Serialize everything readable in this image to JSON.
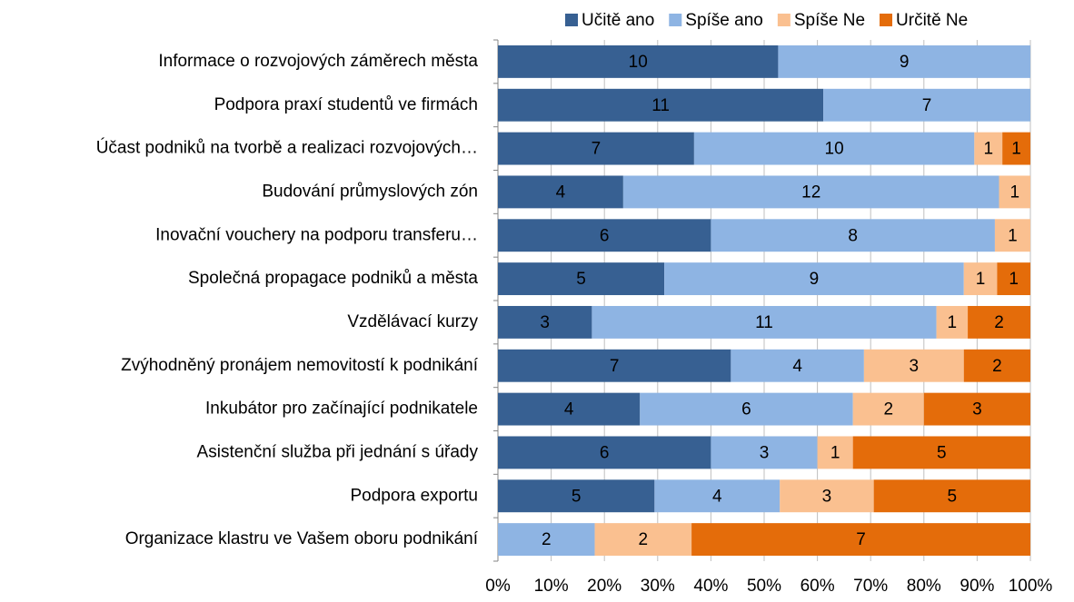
{
  "chart_data": {
    "type": "bar",
    "orientation": "horizontal",
    "stacking": "percent",
    "categories": [
      "Informace o rozvojových záměrech města",
      "Podpora praxí studentů ve firmách",
      "Účast podniků na tvorbě a realizaci rozvojových…",
      "Budování průmyslových zón",
      "Inovační vouchery na podporu transferu…",
      "Společná propagace podniků a města",
      "Vzdělávací kurzy",
      "Zvýhodněný pronájem nemovitostí k podnikání",
      "Inkubátor pro začínající podnikatele",
      "Asistenční služba při jednání s úřady",
      "Podpora exportu",
      "Organizace klastru ve Vašem oboru podnikání"
    ],
    "series": [
      {
        "name": "Učitě ano",
        "color": "#376092",
        "values": [
          10,
          11,
          7,
          4,
          6,
          5,
          3,
          7,
          4,
          6,
          5,
          0
        ]
      },
      {
        "name": "Spíše ano",
        "color": "#8eb4e3",
        "values": [
          9,
          7,
          10,
          12,
          8,
          9,
          11,
          4,
          6,
          3,
          4,
          2
        ]
      },
      {
        "name": "Spíše Ne",
        "color": "#fac090",
        "values": [
          0,
          0,
          1,
          1,
          1,
          1,
          1,
          3,
          2,
          1,
          3,
          2
        ]
      },
      {
        "name": "Určitě Ne",
        "color": "#e46c0a",
        "values": [
          0,
          0,
          1,
          0,
          0,
          1,
          2,
          2,
          3,
          5,
          5,
          7
        ]
      }
    ],
    "xlim": [
      0,
      100
    ],
    "xticks": [
      {
        "value": 0,
        "label": "0%"
      },
      {
        "value": 10,
        "label": "10%"
      },
      {
        "value": 20,
        "label": "20%"
      },
      {
        "value": 30,
        "label": "30%"
      },
      {
        "value": 40,
        "label": "40%"
      },
      {
        "value": 50,
        "label": "50%"
      },
      {
        "value": 60,
        "label": "60%"
      },
      {
        "value": 70,
        "label": "70%"
      },
      {
        "value": 80,
        "label": "80%"
      },
      {
        "value": 90,
        "label": "90%"
      },
      {
        "value": 100,
        "label": "100%"
      }
    ],
    "grid": true,
    "legend": "top"
  }
}
